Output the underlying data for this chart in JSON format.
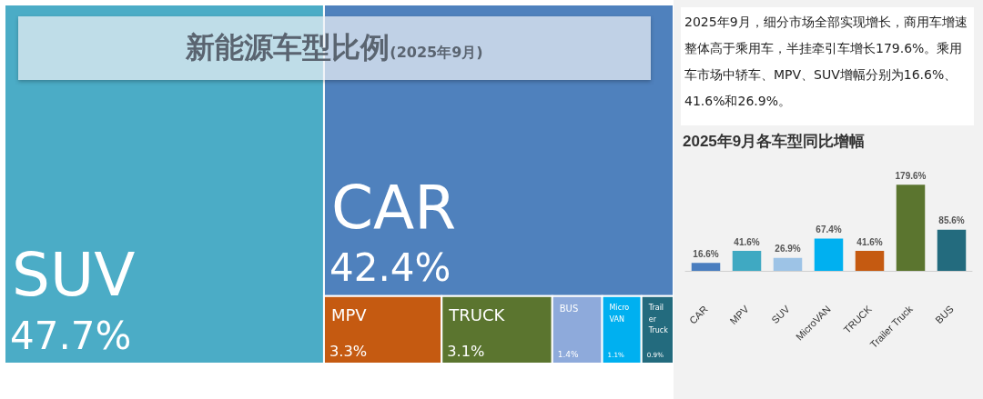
{
  "chart_data": [
    {
      "type": "other",
      "title": "新能源车型比例",
      "subtitle": "(2025年9月)",
      "categories": [
        "SUV",
        "CAR",
        "MPV",
        "TRUCK",
        "BUS",
        "Micro VAN",
        "Trailer Truck"
      ],
      "values": [
        47.7,
        42.4,
        3.3,
        3.1,
        1.4,
        1.1,
        0.9
      ],
      "value_labels": [
        "47.7%",
        "42.4%",
        "3.3%",
        "3.1%",
        "1.4%",
        "1.1%",
        "0.9%"
      ],
      "colors": [
        "#4bacc6",
        "#4f81bd",
        "#c55a11",
        "#5b752f",
        "#8eaadb",
        "#00b0f0",
        "#236b7e"
      ]
    },
    {
      "type": "other",
      "annotations": [
        "2025年9月，细分市场全部实现增长，商用车增速整体高于乘用车，半挂牵引车增长179.6%。乘用车市场中轿车、MPV、SUV增幅分别为16.6%、41.6%和26.9%。"
      ]
    },
    {
      "type": "bar",
      "title": "2025年9月各车型同比增幅",
      "categories": [
        "CAR",
        "MPV",
        "SUV",
        "MicroVAN",
        "TRUCK",
        "Trailer Truck",
        "BUS"
      ],
      "values": [
        16.6,
        41.6,
        26.9,
        67.4,
        41.6,
        179.6,
        85.6
      ],
      "value_labels": [
        "16.6%",
        "41.6%",
        "26.9%",
        "67.4%",
        "41.6%",
        "179.6%",
        "85.6%"
      ],
      "colors": [
        "#4a7ebf",
        "#3fa9c2",
        "#9dc3e6",
        "#00b0f0",
        "#c55a11",
        "#5b752f",
        "#236b7e"
      ]
    }
  ]
}
